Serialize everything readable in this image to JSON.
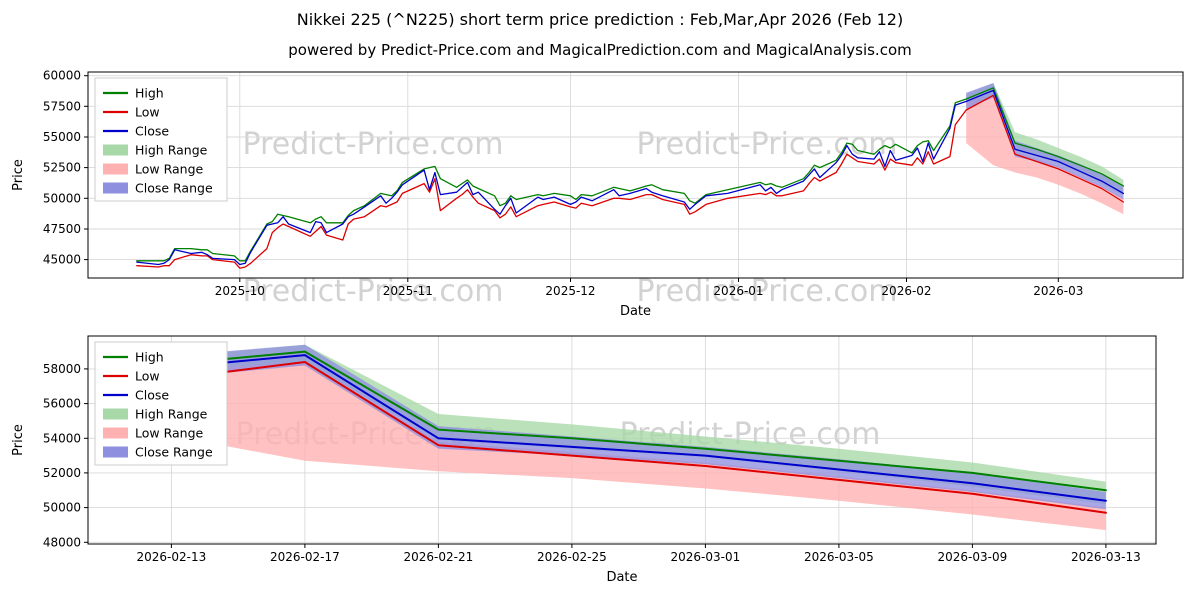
{
  "header": {
    "title": "Nikkei 225 (^N225) short term price prediction : Feb,Mar,Apr 2026 (Feb 12)",
    "subtitle": "powered by Predict-Price.com and MagicalPrediction.com and MagicalAnalysis.com"
  },
  "watermark": "Predict-Price.com",
  "colors": {
    "high": "#008000",
    "low": "#dd0000",
    "close": "#0000cc",
    "high_range": "#a8d8a8",
    "low_range": "#ffb0b0",
    "close_range": "#8f8fe0",
    "grid": "#d9d9d9",
    "watermark_text": "#c7c7c7"
  },
  "legend": [
    {
      "label": "High",
      "color": "#008000",
      "swatch": "line"
    },
    {
      "label": "Low",
      "color": "#dd0000",
      "swatch": "line"
    },
    {
      "label": "Close",
      "color": "#0000cc",
      "swatch": "line"
    },
    {
      "label": "High Range",
      "color": "#a8d8a8",
      "swatch": "patch"
    },
    {
      "label": "Low Range",
      "color": "#ffb0b0",
      "swatch": "patch"
    },
    {
      "label": "Close Range",
      "color": "#8f8fe0",
      "swatch": "patch"
    }
  ],
  "chart_data": [
    {
      "name": "overview",
      "type": "line",
      "xlabel": "Date",
      "ylabel": "Price",
      "legend_position": "upper left",
      "grid": true,
      "xlim": [
        "2025-09-03",
        "2026-03-24"
      ],
      "ylim": [
        43500,
        60300
      ],
      "y_ticks": [
        45000,
        47500,
        50000,
        52500,
        55000,
        57500,
        60000
      ],
      "x_ticks": [
        {
          "label": "2025-10",
          "date": "2025-10-01"
        },
        {
          "label": "2025-11",
          "date": "2025-11-01"
        },
        {
          "label": "2025-12",
          "date": "2025-12-01"
        },
        {
          "label": "2026-01",
          "date": "2026-01-01"
        },
        {
          "label": "2026-02",
          "date": "2026-02-01"
        },
        {
          "label": "2026-03",
          "date": "2026-03-01"
        }
      ],
      "series": {
        "dates": [
          "2025-09-12",
          "2025-09-16",
          "2025-09-17",
          "2025-09-18",
          "2025-09-19",
          "2025-09-22",
          "2025-09-24",
          "2025-09-25",
          "2025-09-26",
          "2025-09-30",
          "2025-10-01",
          "2025-10-02",
          "2025-10-03",
          "2025-10-06",
          "2025-10-07",
          "2025-10-08",
          "2025-10-09",
          "2025-10-10",
          "2025-10-14",
          "2025-10-15",
          "2025-10-16",
          "2025-10-17",
          "2025-10-20",
          "2025-10-21",
          "2025-10-22",
          "2025-10-24",
          "2025-10-27",
          "2025-10-28",
          "2025-10-29",
          "2025-10-30",
          "2025-10-31",
          "2025-11-04",
          "2025-11-05",
          "2025-11-06",
          "2025-11-07",
          "2025-11-10",
          "2025-11-11",
          "2025-11-12",
          "2025-11-13",
          "2025-11-14",
          "2025-11-17",
          "2025-11-18",
          "2025-11-19",
          "2025-11-20",
          "2025-11-21",
          "2025-11-25",
          "2025-11-26",
          "2025-11-28",
          "2025-12-01",
          "2025-12-02",
          "2025-12-03",
          "2025-12-05",
          "2025-12-09",
          "2025-12-10",
          "2025-12-12",
          "2025-12-15",
          "2025-12-16",
          "2025-12-18",
          "2025-12-22",
          "2025-12-23",
          "2025-12-24",
          "2025-12-26",
          "2025-12-30",
          "2026-01-05",
          "2026-01-06",
          "2026-01-07",
          "2026-01-08",
          "2026-01-09",
          "2026-01-13",
          "2026-01-14",
          "2026-01-15",
          "2026-01-16",
          "2026-01-19",
          "2026-01-20",
          "2026-01-21",
          "2026-01-22",
          "2026-01-23",
          "2026-01-26",
          "2026-01-27",
          "2026-01-28",
          "2026-01-29",
          "2026-01-30",
          "2026-02-02",
          "2026-02-03",
          "2026-02-04",
          "2026-02-05",
          "2026-02-06",
          "2026-02-09",
          "2026-02-10",
          "2026-02-12"
        ],
        "high": [
          44900,
          44900,
          44900,
          45100,
          45900,
          45900,
          45800,
          45800,
          45500,
          45300,
          44900,
          44900,
          45700,
          47900,
          48100,
          48700,
          48600,
          48500,
          48000,
          48300,
          48500,
          48000,
          48000,
          48600,
          49000,
          49400,
          50400,
          50300,
          50200,
          50600,
          51300,
          52400,
          52500,
          52600,
          51600,
          50900,
          51200,
          51500,
          51000,
          50800,
          50200,
          49400,
          49600,
          50200,
          49900,
          50300,
          50200,
          50400,
          50200,
          49900,
          50300,
          50200,
          50900,
          50800,
          50600,
          51000,
          51100,
          50700,
          50400,
          49800,
          49600,
          50300,
          50700,
          51300,
          51100,
          51200,
          51000,
          50900,
          51600,
          52100,
          52700,
          52500,
          53100,
          53700,
          54500,
          54400,
          53900,
          53600,
          54000,
          54300,
          54100,
          54400,
          53700,
          54300,
          54600,
          54700,
          53900,
          55900,
          57800,
          58100
        ],
        "low": [
          44500,
          44400,
          44500,
          44500,
          45000,
          45400,
          45300,
          45300,
          45000,
          44800,
          44300,
          44400,
          44700,
          45900,
          47200,
          47600,
          47900,
          47700,
          46900,
          47300,
          47700,
          47000,
          46600,
          47900,
          48300,
          48500,
          49400,
          49300,
          49500,
          49700,
          50400,
          51200,
          50500,
          51600,
          49000,
          50000,
          50300,
          50700,
          50100,
          49600,
          49000,
          48400,
          48700,
          49300,
          48500,
          49400,
          49500,
          49700,
          49300,
          49200,
          49600,
          49400,
          50000,
          50000,
          49900,
          50300,
          50300,
          49900,
          49500,
          48700,
          48900,
          49500,
          50000,
          50400,
          50300,
          50500,
          50200,
          50200,
          50600,
          51200,
          51700,
          51400,
          52100,
          52800,
          53600,
          53300,
          53000,
          52800,
          53200,
          52300,
          53200,
          52900,
          52700,
          53300,
          52800,
          53800,
          52800,
          53400,
          56000,
          57200
        ],
        "close": [
          44800,
          44600,
          44700,
          45000,
          45800,
          45500,
          45600,
          45400,
          45100,
          45000,
          44600,
          44700,
          45600,
          47800,
          47900,
          48000,
          48500,
          47900,
          47200,
          48100,
          48000,
          47200,
          47900,
          48500,
          48700,
          49300,
          50200,
          49600,
          50000,
          50500,
          51100,
          52300,
          50700,
          52100,
          50300,
          50500,
          50900,
          51300,
          50300,
          50500,
          49100,
          48700,
          49400,
          50000,
          48800,
          50100,
          49900,
          50100,
          49500,
          49700,
          50100,
          49800,
          50700,
          50200,
          50400,
          50800,
          50500,
          50200,
          49700,
          49100,
          49500,
          50200,
          50400,
          51100,
          50600,
          50900,
          50400,
          50700,
          51400,
          51900,
          52400,
          51700,
          52900,
          53500,
          54300,
          53600,
          53300,
          53200,
          53800,
          52600,
          53900,
          53100,
          53500,
          54100,
          53000,
          54500,
          53200,
          55700,
          57600,
          57900
        ]
      },
      "forecast": {
        "dates": [
          "2026-02-12",
          "2026-02-17",
          "2026-02-21",
          "2026-02-25",
          "2026-03-01",
          "2026-03-05",
          "2026-03-09",
          "2026-03-13"
        ],
        "high": [
          58100,
          59000,
          54500,
          54000,
          53400,
          52700,
          52000,
          51000
        ],
        "low": [
          57200,
          58400,
          53600,
          53000,
          52400,
          51600,
          50800,
          49700
        ],
        "close": [
          57900,
          58800,
          54000,
          53500,
          53000,
          52200,
          51400,
          50400
        ]
      },
      "bands": {
        "high_top": [
          58500,
          59400,
          55400,
          54800,
          54100,
          53400,
          52600,
          51500
        ],
        "high_bot": [
          57800,
          58400,
          53900,
          53400,
          52900,
          52100,
          51200,
          50200
        ],
        "low_top": [
          57900,
          58400,
          53800,
          53200,
          52600,
          51800,
          51000,
          50000
        ],
        "low_bot": [
          54500,
          52700,
          52100,
          51700,
          51100,
          50400,
          49600,
          48700
        ],
        "close_top": [
          58600,
          59400,
          54700,
          54100,
          53500,
          52800,
          52000,
          50900
        ],
        "close_bot": [
          57300,
          58200,
          53400,
          53000,
          52500,
          51700,
          50900,
          49900
        ]
      }
    },
    {
      "name": "forecast-zoom",
      "type": "line",
      "xlabel": "Date",
      "ylabel": "Price",
      "legend_position": "upper left",
      "grid": true,
      "xlim": [
        "2026-02-10T12:00:00Z",
        "2026-03-14T12:00:00Z"
      ],
      "ylim": [
        47900,
        59900
      ],
      "y_ticks": [
        48000,
        50000,
        52000,
        54000,
        56000,
        58000
      ],
      "x_ticks": [
        {
          "label": "2026-02-13",
          "date": "2026-02-13"
        },
        {
          "label": "2026-02-17",
          "date": "2026-02-17"
        },
        {
          "label": "2026-02-21",
          "date": "2026-02-21"
        },
        {
          "label": "2026-02-25",
          "date": "2026-02-25"
        },
        {
          "label": "2026-03-01",
          "date": "2026-03-01"
        },
        {
          "label": "2026-03-05",
          "date": "2026-03-05"
        },
        {
          "label": "2026-03-09",
          "date": "2026-03-09"
        },
        {
          "label": "2026-03-13",
          "date": "2026-03-13"
        }
      ],
      "series": {
        "dates": [
          "2026-02-12",
          "2026-02-17",
          "2026-02-21",
          "2026-02-25",
          "2026-03-01",
          "2026-03-05",
          "2026-03-09",
          "2026-03-13"
        ],
        "high": [
          58100,
          59000,
          54500,
          54000,
          53400,
          52700,
          52000,
          51000
        ],
        "low": [
          57200,
          58400,
          53600,
          53000,
          52400,
          51600,
          50800,
          49700
        ],
        "close": [
          57900,
          58800,
          54000,
          53500,
          53000,
          52200,
          51400,
          50400
        ]
      },
      "bands": {
        "high_top": [
          58500,
          59400,
          55400,
          54800,
          54100,
          53400,
          52600,
          51500
        ],
        "high_bot": [
          57800,
          58400,
          53900,
          53400,
          52900,
          52100,
          51200,
          50200
        ],
        "low_top": [
          57900,
          58400,
          53800,
          53200,
          52600,
          51800,
          51000,
          50000
        ],
        "low_bot": [
          54500,
          52700,
          52100,
          51700,
          51100,
          50400,
          49600,
          48700
        ],
        "close_top": [
          58600,
          59400,
          54700,
          54100,
          53500,
          52800,
          52000,
          50900
        ],
        "close_bot": [
          57300,
          58200,
          53400,
          53000,
          52500,
          51700,
          50900,
          49900
        ]
      }
    }
  ]
}
